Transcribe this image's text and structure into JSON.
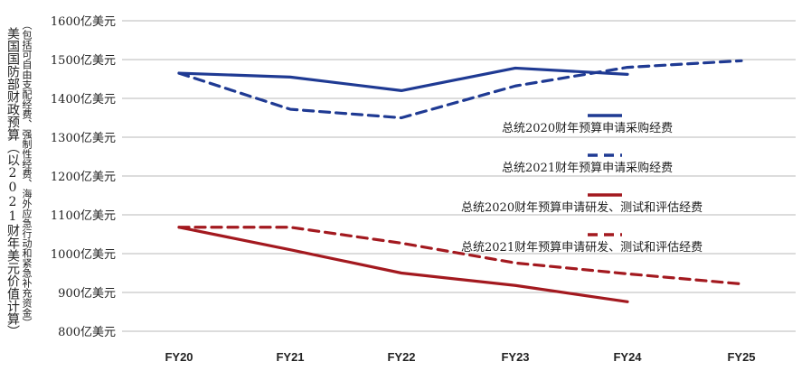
{
  "chart_data": {
    "type": "line",
    "ylabel": "美国国防部财政预算（以2021财年美元价值计算）",
    "ylabel_note": "（包括可自由支配经费、强制性经费、海外应急行动和紧急补充资金）",
    "categories": [
      "FY20",
      "FY21",
      "FY22",
      "FY23",
      "FY24",
      "FY25"
    ],
    "y_ticks": [
      {
        "value": 800,
        "label": "800亿美元"
      },
      {
        "value": 900,
        "label": "900亿美元"
      },
      {
        "value": 1000,
        "label": "1000亿美元"
      },
      {
        "value": 1100,
        "label": "1100亿美元"
      },
      {
        "value": 1200,
        "label": "1200亿美元"
      },
      {
        "value": 1300,
        "label": "1300亿美元"
      },
      {
        "value": 1400,
        "label": "1400亿美元"
      },
      {
        "value": 1500,
        "label": "1500亿美元"
      },
      {
        "value": 1600,
        "label": "1600亿美元"
      }
    ],
    "ylim": [
      800,
      1600
    ],
    "grid": true,
    "legend_position": "right-middle",
    "series": [
      {
        "name": "总统2020财年预算申请采购经费",
        "values": [
          1465,
          1455,
          1420,
          1478,
          1462,
          null
        ],
        "color": "#1f3a93",
        "dash": false
      },
      {
        "name": "总统2021财年预算申请采购经费",
        "values": [
          1465,
          1372,
          1350,
          1432,
          1480,
          1497
        ],
        "color": "#1f3a93",
        "dash": true
      },
      {
        "name": "总统2020财年预算申请研发、测试和评估经费",
        "values": [
          1068,
          1010,
          950,
          918,
          876,
          null
        ],
        "color": "#a3191f",
        "dash": false
      },
      {
        "name": "总统2021财年预算申请研发、测试和评估经费",
        "values": [
          1068,
          1068,
          1027,
          976,
          948,
          922
        ],
        "color": "#a3191f",
        "dash": true
      }
    ]
  }
}
